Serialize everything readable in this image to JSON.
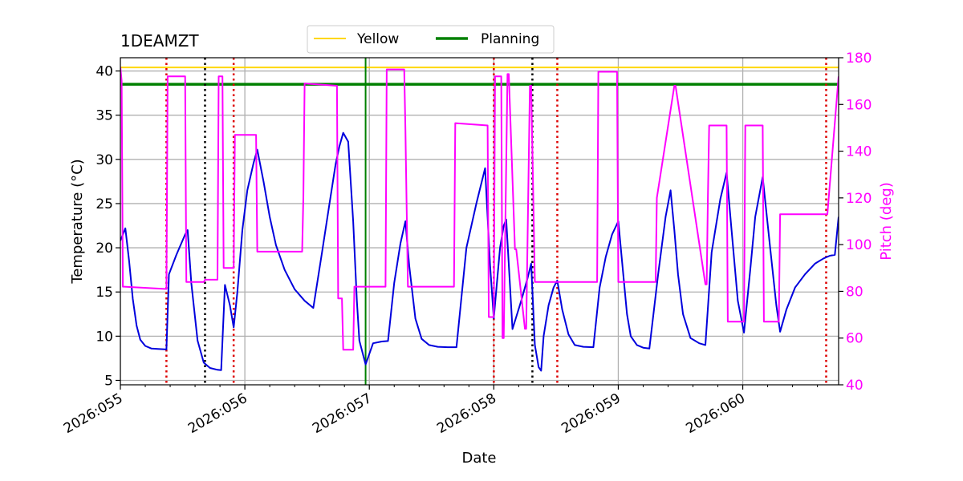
{
  "chart_data": {
    "type": "line",
    "title": "1DEAMZT",
    "xlabel": "Date",
    "ylabel": "Temperature ($^\\circ$C)",
    "ylabel_display": "Temperature (°C)",
    "y2label": "Pitch (deg)",
    "xlim": [
      55.0,
      60.77
    ],
    "ylim": [
      4.5,
      41.5
    ],
    "y2lim": [
      40,
      180
    ],
    "x_ticks": [
      55,
      56,
      57,
      58,
      59,
      60
    ],
    "x_tick_labels": [
      "2026:055",
      "2026:056",
      "2026:057",
      "2026:058",
      "2026:059",
      "2026:060"
    ],
    "y_ticks": [
      5,
      10,
      15,
      20,
      25,
      30,
      35,
      40
    ],
    "y2_ticks": [
      40,
      60,
      80,
      100,
      120,
      140,
      160,
      180
    ],
    "grid": true,
    "legend_position": "top-center",
    "legend": [
      {
        "name": "Yellow",
        "color": "#ffd700"
      },
      {
        "name": "Planning",
        "color": "#008000"
      }
    ],
    "colors": {
      "temperature": "#0000dd",
      "pitch": "#ff00ff",
      "yellow": "#ffd700",
      "planning": "#008000",
      "red_marker": "#dd0000",
      "black_marker": "#000000"
    },
    "yellow_limit": 40.4,
    "planning_limit": 38.5,
    "planning_vline_x": 56.97,
    "red_vlines_x": [
      55.37,
      55.91,
      58.0,
      58.51,
      60.67
    ],
    "black_vlines_x": [
      55.68,
      58.31
    ],
    "temperature_series": {
      "x": [
        55.0,
        55.04,
        55.07,
        55.1,
        55.13,
        55.16,
        55.2,
        55.25,
        55.3,
        55.37,
        55.39,
        55.45,
        55.52,
        55.54,
        55.57,
        55.62,
        55.67,
        55.72,
        55.78,
        55.81,
        55.84,
        55.88,
        55.91,
        55.94,
        55.98,
        56.02,
        56.07,
        56.1,
        56.15,
        56.2,
        56.25,
        56.32,
        56.4,
        56.48,
        56.55,
        56.62,
        56.68,
        56.73,
        56.76,
        56.79,
        56.83,
        56.87,
        56.9,
        56.92,
        56.97,
        57.03,
        57.1,
        57.15,
        57.2,
        57.25,
        57.29,
        57.32,
        57.37,
        57.42,
        57.48,
        57.55,
        57.63,
        57.7,
        57.78,
        57.86,
        57.93,
        57.97,
        58.0,
        58.05,
        58.08,
        58.1,
        58.15,
        58.22,
        58.27,
        58.3,
        58.33,
        58.36,
        58.38,
        58.4,
        58.44,
        58.48,
        58.51,
        58.55,
        58.6,
        58.65,
        58.72,
        58.8,
        58.85,
        58.9,
        58.95,
        59.0,
        59.03,
        59.07,
        59.1,
        59.15,
        59.2,
        59.25,
        59.32,
        59.38,
        59.42,
        59.45,
        59.48,
        59.52,
        59.58,
        59.65,
        59.7,
        59.75,
        59.82,
        59.87,
        59.91,
        59.96,
        60.01,
        60.06,
        60.1,
        60.16,
        60.22,
        60.27,
        60.3,
        60.35,
        60.42,
        60.5,
        60.58,
        60.65,
        60.7,
        60.74,
        60.77
      ],
      "y": [
        20.8,
        22.2,
        18.5,
        14.2,
        11.2,
        9.6,
        8.9,
        8.6,
        8.55,
        8.5,
        17.0,
        19.2,
        21.5,
        22.0,
        16.0,
        9.5,
        7.0,
        6.4,
        6.2,
        6.15,
        15.8,
        13.5,
        11.0,
        15.0,
        22.0,
        26.5,
        29.6,
        31.1,
        27.5,
        23.5,
        20.3,
        17.5,
        15.3,
        14.0,
        13.2,
        19.5,
        25.0,
        29.5,
        31.5,
        33.0,
        32.0,
        23.0,
        14.0,
        9.5,
        6.8,
        9.2,
        9.4,
        9.45,
        16.0,
        20.5,
        23.0,
        18.0,
        12.0,
        9.7,
        9.0,
        8.8,
        8.75,
        8.75,
        20.0,
        25.0,
        29.0,
        18.0,
        12.0,
        20.0,
        22.5,
        23.2,
        10.8,
        14.0,
        16.5,
        18.2,
        9.0,
        6.5,
        6.1,
        10.0,
        13.5,
        15.5,
        16.3,
        13.0,
        10.2,
        9.0,
        8.8,
        8.75,
        15.5,
        19.0,
        21.5,
        23.0,
        18.5,
        12.5,
        10.0,
        9.0,
        8.7,
        8.6,
        17.0,
        23.5,
        26.5,
        22.0,
        17.0,
        12.5,
        9.8,
        9.2,
        9.0,
        19.5,
        25.5,
        28.5,
        22.0,
        14.0,
        10.4,
        17.5,
        23.5,
        28.0,
        20.0,
        13.5,
        10.5,
        13.0,
        15.5,
        17.0,
        18.2,
        18.8,
        19.1,
        19.2,
        23.5
      ]
    },
    "pitch_series": {
      "x": [
        55.0,
        55.01,
        55.02,
        55.03,
        55.37,
        55.38,
        55.52,
        55.53,
        55.67,
        55.68,
        55.78,
        55.79,
        55.82,
        55.83,
        55.84,
        55.85,
        55.91,
        55.92,
        56.09,
        56.1,
        56.46,
        56.47,
        56.48,
        56.74,
        56.75,
        56.76,
        56.78,
        56.79,
        56.87,
        56.88,
        56.92,
        57.13,
        57.14,
        57.28,
        57.29,
        57.31,
        57.32,
        57.68,
        57.69,
        57.95,
        57.96,
        58.0,
        58.01,
        58.02,
        58.06,
        58.07,
        58.08,
        58.11,
        58.12,
        58.17,
        58.18,
        58.25,
        58.26,
        58.29,
        58.3,
        58.33,
        58.34,
        58.39,
        58.4,
        58.41,
        58.48,
        58.49,
        58.51,
        58.52,
        58.83,
        58.84,
        58.99,
        59.0,
        59.3,
        59.31,
        59.45,
        59.46,
        59.7,
        59.71,
        59.72,
        59.73,
        59.87,
        59.88,
        60.01,
        60.02,
        60.16,
        60.17,
        60.29,
        60.3,
        60.65,
        60.66,
        60.67,
        60.68,
        60.77
      ],
      "y": [
        176,
        170,
        82,
        82,
        81,
        172,
        172,
        84,
        84,
        85,
        85,
        172,
        172,
        90,
        90,
        90,
        90,
        147,
        147,
        97,
        97,
        120,
        169,
        168,
        77,
        77,
        77,
        55,
        55,
        82,
        82,
        82,
        175,
        175,
        149,
        82,
        82,
        82,
        152,
        151,
        69,
        69,
        172,
        172,
        172,
        60,
        60,
        173,
        173,
        98,
        98,
        64,
        64,
        168,
        168,
        84,
        84,
        84,
        84,
        84,
        84,
        84,
        84,
        84,
        84,
        174,
        174,
        84,
        84,
        120,
        168,
        168,
        83,
        83,
        120,
        151,
        151,
        67,
        67,
        151,
        151,
        67,
        67,
        113,
        113,
        113,
        113,
        113,
        172
      ]
    }
  }
}
